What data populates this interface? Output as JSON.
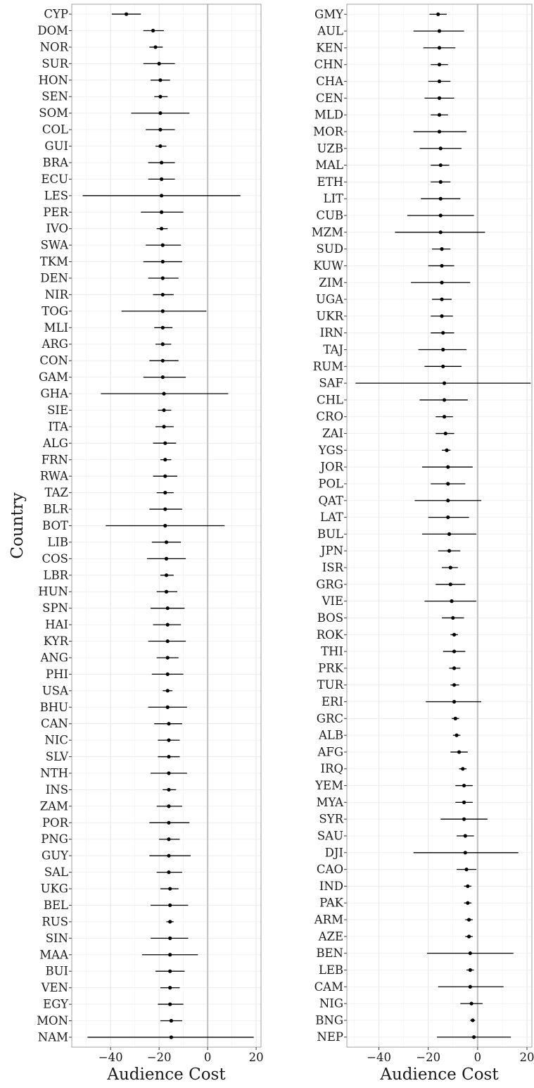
{
  "chart_data": [
    {
      "type": "scatter",
      "panel": "left",
      "xlabel": "Audience Cost",
      "ylabel": "Country",
      "xlim": [
        -56,
        22
      ],
      "xticks": [
        -40,
        -20,
        0,
        20
      ],
      "reference_line_x": 0,
      "grid": true,
      "points": [
        {
          "country": "CYP",
          "estimate": -33.5,
          "lower": -39.5,
          "upper": -27.5
        },
        {
          "country": "DOM",
          "estimate": -22.5,
          "lower": -26.5,
          "upper": -18
        },
        {
          "country": "NOR",
          "estimate": -21.5,
          "lower": -24,
          "upper": -18.5
        },
        {
          "country": "SUR",
          "estimate": -20,
          "lower": -26.5,
          "upper": -13.5
        },
        {
          "country": "HON",
          "estimate": -19.5,
          "lower": -23.5,
          "upper": -15.5
        },
        {
          "country": "SEN",
          "estimate": -19.5,
          "lower": -22,
          "upper": -16.5
        },
        {
          "country": "SOM",
          "estimate": -19.5,
          "lower": -31.5,
          "upper": -7.5
        },
        {
          "country": "COL",
          "estimate": -19.5,
          "lower": -25.5,
          "upper": -13.5
        },
        {
          "country": "GUI",
          "estimate": -19.5,
          "lower": -21.5,
          "upper": -17
        },
        {
          "country": "BRA",
          "estimate": -19,
          "lower": -24.5,
          "upper": -13.5
        },
        {
          "country": "ECU",
          "estimate": -19,
          "lower": -24.5,
          "upper": -13.5
        },
        {
          "country": "LES",
          "estimate": -19,
          "lower": -51.5,
          "upper": 13.5
        },
        {
          "country": "PER",
          "estimate": -19,
          "lower": -27.5,
          "upper": -10
        },
        {
          "country": "IVO",
          "estimate": -19,
          "lower": -21,
          "upper": -16.5
        },
        {
          "country": "SWA",
          "estimate": -18.5,
          "lower": -25.5,
          "upper": -11
        },
        {
          "country": "TKM",
          "estimate": -18.5,
          "lower": -26.5,
          "upper": -10.5
        },
        {
          "country": "DEN",
          "estimate": -18.5,
          "lower": -24.5,
          "upper": -12
        },
        {
          "country": "NIR",
          "estimate": -18.5,
          "lower": -22.5,
          "upper": -14
        },
        {
          "country": "TOG",
          "estimate": -18.5,
          "lower": -35.5,
          "upper": -0.5
        },
        {
          "country": "MLI",
          "estimate": -18.5,
          "lower": -22,
          "upper": -14.5
        },
        {
          "country": "ARG",
          "estimate": -18.5,
          "lower": -21.5,
          "upper": -15
        },
        {
          "country": "CON",
          "estimate": -18.5,
          "lower": -24,
          "upper": -12
        },
        {
          "country": "GAM",
          "estimate": -18.5,
          "lower": -26.5,
          "upper": -9
        },
        {
          "country": "GHA",
          "estimate": -18,
          "lower": -44,
          "upper": 8.5
        },
        {
          "country": "SIE",
          "estimate": -18,
          "lower": -20.5,
          "upper": -15
        },
        {
          "country": "ITA",
          "estimate": -18,
          "lower": -21.5,
          "upper": -14
        },
        {
          "country": "ALG",
          "estimate": -17.5,
          "lower": -22.5,
          "upper": -13
        },
        {
          "country": "FRN",
          "estimate": -17.5,
          "lower": -19.5,
          "upper": -15
        },
        {
          "country": "RWA",
          "estimate": -17.5,
          "lower": -22.5,
          "upper": -12.5
        },
        {
          "country": "TAZ",
          "estimate": -17.5,
          "lower": -21,
          "upper": -14
        },
        {
          "country": "BLR",
          "estimate": -17.5,
          "lower": -24,
          "upper": -10.5
        },
        {
          "country": "BOT",
          "estimate": -17.5,
          "lower": -42,
          "upper": 7
        },
        {
          "country": "LIB",
          "estimate": -17,
          "lower": -23,
          "upper": -11
        },
        {
          "country": "COS",
          "estimate": -17,
          "lower": -25,
          "upper": -9
        },
        {
          "country": "LBR",
          "estimate": -17,
          "lower": -19.5,
          "upper": -14
        },
        {
          "country": "HUN",
          "estimate": -17,
          "lower": -21,
          "upper": -12.5
        },
        {
          "country": "SPN",
          "estimate": -16.5,
          "lower": -23.5,
          "upper": -9.5
        },
        {
          "country": "HAI",
          "estimate": -16.5,
          "lower": -22.5,
          "upper": -11
        },
        {
          "country": "KYR",
          "estimate": -16.5,
          "lower": -24.5,
          "upper": -9
        },
        {
          "country": "ANG",
          "estimate": -16.5,
          "lower": -21,
          "upper": -12
        },
        {
          "country": "PHI",
          "estimate": -16.5,
          "lower": -23,
          "upper": -10
        },
        {
          "country": "USA",
          "estimate": -16.5,
          "lower": -18.5,
          "upper": -14.5
        },
        {
          "country": "BHU",
          "estimate": -16.5,
          "lower": -24.5,
          "upper": -8.5
        },
        {
          "country": "CAN",
          "estimate": -16,
          "lower": -22,
          "upper": -10.5
        },
        {
          "country": "NIC",
          "estimate": -16,
          "lower": -20.5,
          "upper": -11.5
        },
        {
          "country": "SLV",
          "estimate": -16,
          "lower": -20.5,
          "upper": -11.5
        },
        {
          "country": "NTH",
          "estimate": -16,
          "lower": -23.5,
          "upper": -8.5
        },
        {
          "country": "INS",
          "estimate": -16,
          "lower": -18.5,
          "upper": -13
        },
        {
          "country": "ZAM",
          "estimate": -16,
          "lower": -21,
          "upper": -10.5
        },
        {
          "country": "POR",
          "estimate": -16,
          "lower": -24,
          "upper": -7.5
        },
        {
          "country": "PNG",
          "estimate": -16,
          "lower": -20,
          "upper": -11.5
        },
        {
          "country": "GUY",
          "estimate": -16,
          "lower": -24,
          "upper": -7
        },
        {
          "country": "SAL",
          "estimate": -16,
          "lower": -21,
          "upper": -10.5
        },
        {
          "country": "UKG",
          "estimate": -15.5,
          "lower": -19.5,
          "upper": -12
        },
        {
          "country": "BEL",
          "estimate": -15.5,
          "lower": -23.5,
          "upper": -8
        },
        {
          "country": "RUS",
          "estimate": -15.5,
          "lower": -17,
          "upper": -14
        },
        {
          "country": "SIN",
          "estimate": -15.5,
          "lower": -23.5,
          "upper": -8
        },
        {
          "country": "MAA",
          "estimate": -15.5,
          "lower": -27,
          "upper": -4
        },
        {
          "country": "BUI",
          "estimate": -15.5,
          "lower": -21.5,
          "upper": -9.5
        },
        {
          "country": "VEN",
          "estimate": -15.5,
          "lower": -19.5,
          "upper": -11.5
        },
        {
          "country": "EGY",
          "estimate": -15.5,
          "lower": -20.5,
          "upper": -10
        },
        {
          "country": "MON",
          "estimate": -15,
          "lower": -19.5,
          "upper": -10.5
        },
        {
          "country": "NAM",
          "estimate": -15,
          "lower": -49.5,
          "upper": 19
        }
      ]
    },
    {
      "type": "scatter",
      "panel": "right",
      "xlabel": "Audience Cost",
      "ylabel": "",
      "xlim": [
        -53,
        22
      ],
      "xticks": [
        -40,
        -20,
        0,
        20
      ],
      "reference_line_x": 0,
      "grid": true,
      "points": [
        {
          "country": "GMY",
          "estimate": -16,
          "lower": -19.5,
          "upper": -12.5
        },
        {
          "country": "AUL",
          "estimate": -15.5,
          "lower": -26,
          "upper": -5.5
        },
        {
          "country": "KEN",
          "estimate": -15.5,
          "lower": -22,
          "upper": -9
        },
        {
          "country": "CHN",
          "estimate": -15.5,
          "lower": -19,
          "upper": -12
        },
        {
          "country": "CHA",
          "estimate": -15.5,
          "lower": -20,
          "upper": -11
        },
        {
          "country": "CEN",
          "estimate": -15.5,
          "lower": -21.5,
          "upper": -9.5
        },
        {
          "country": "MLD",
          "estimate": -15.5,
          "lower": -19,
          "upper": -12
        },
        {
          "country": "MOR",
          "estimate": -15.5,
          "lower": -26,
          "upper": -4.5
        },
        {
          "country": "UZB",
          "estimate": -15,
          "lower": -23.5,
          "upper": -6.5
        },
        {
          "country": "MAL",
          "estimate": -15,
          "lower": -19,
          "upper": -11.5
        },
        {
          "country": "ETH",
          "estimate": -15,
          "lower": -19,
          "upper": -11
        },
        {
          "country": "LIT",
          "estimate": -15,
          "lower": -23,
          "upper": -7
        },
        {
          "country": "CUB",
          "estimate": -15,
          "lower": -28.5,
          "upper": -1.5
        },
        {
          "country": "MZM",
          "estimate": -15,
          "lower": -33.5,
          "upper": 3
        },
        {
          "country": "SUD",
          "estimate": -14.5,
          "lower": -18.5,
          "upper": -11
        },
        {
          "country": "KUW",
          "estimate": -14.5,
          "lower": -20,
          "upper": -9.5
        },
        {
          "country": "ZIM",
          "estimate": -14.5,
          "lower": -27,
          "upper": -3
        },
        {
          "country": "UGA",
          "estimate": -14.5,
          "lower": -18.5,
          "upper": -10.5
        },
        {
          "country": "UKR",
          "estimate": -14.5,
          "lower": -19,
          "upper": -10
        },
        {
          "country": "IRN",
          "estimate": -14,
          "lower": -19,
          "upper": -9.5
        },
        {
          "country": "TAJ",
          "estimate": -14,
          "lower": -24,
          "upper": -4.5
        },
        {
          "country": "RUM",
          "estimate": -14,
          "lower": -21.5,
          "upper": -6.5
        },
        {
          "country": "SAF",
          "estimate": -13.5,
          "lower": -49.5,
          "upper": 21.5
        },
        {
          "country": "CHL",
          "estimate": -13.5,
          "lower": -23.5,
          "upper": -4
        },
        {
          "country": "CRO",
          "estimate": -13.5,
          "lower": -17,
          "upper": -10
        },
        {
          "country": "ZAI",
          "estimate": -13,
          "lower": -17,
          "upper": -9.5
        },
        {
          "country": "YGS",
          "estimate": -12.5,
          "lower": -14.5,
          "upper": -11
        },
        {
          "country": "JOR",
          "estimate": -12,
          "lower": -22.5,
          "upper": -2
        },
        {
          "country": "POL",
          "estimate": -12,
          "lower": -19,
          "upper": -5
        },
        {
          "country": "QAT",
          "estimate": -12,
          "lower": -25.5,
          "upper": 1.5
        },
        {
          "country": "LAT",
          "estimate": -12,
          "lower": -20,
          "upper": -3.5
        },
        {
          "country": "BUL",
          "estimate": -11.5,
          "lower": -22.5,
          "upper": -0.5
        },
        {
          "country": "JPN",
          "estimate": -11.5,
          "lower": -16,
          "upper": -7
        },
        {
          "country": "ISR",
          "estimate": -11,
          "lower": -14.5,
          "upper": -8
        },
        {
          "country": "GRG",
          "estimate": -11,
          "lower": -17,
          "upper": -5
        },
        {
          "country": "VIE",
          "estimate": -10.5,
          "lower": -21.5,
          "upper": -0.5
        },
        {
          "country": "BOS",
          "estimate": -10,
          "lower": -14.5,
          "upper": -5.5
        },
        {
          "country": "ROK",
          "estimate": -9.5,
          "lower": -11,
          "upper": -8
        },
        {
          "country": "THI",
          "estimate": -9.5,
          "lower": -14,
          "upper": -5
        },
        {
          "country": "PRK",
          "estimate": -9.5,
          "lower": -11.5,
          "upper": -7
        },
        {
          "country": "TUR",
          "estimate": -9.5,
          "lower": -11,
          "upper": -7.5
        },
        {
          "country": "ERI",
          "estimate": -9.5,
          "lower": -21,
          "upper": 1.5
        },
        {
          "country": "GRC",
          "estimate": -9,
          "lower": -10.5,
          "upper": -7.5
        },
        {
          "country": "ALB",
          "estimate": -8.5,
          "lower": -10,
          "upper": -7
        },
        {
          "country": "AFG",
          "estimate": -7.5,
          "lower": -11,
          "upper": -4
        },
        {
          "country": "IRQ",
          "estimate": -6,
          "lower": -7.5,
          "upper": -4.5
        },
        {
          "country": "YEM",
          "estimate": -5.5,
          "lower": -9,
          "upper": -2
        },
        {
          "country": "MYA",
          "estimate": -5.5,
          "lower": -9,
          "upper": -2
        },
        {
          "country": "SYR",
          "estimate": -5.5,
          "lower": -15,
          "upper": 4
        },
        {
          "country": "SAU",
          "estimate": -5,
          "lower": -8.5,
          "upper": -1.5
        },
        {
          "country": "DJI",
          "estimate": -5,
          "lower": -26,
          "upper": 16.5
        },
        {
          "country": "CAO",
          "estimate": -4.5,
          "lower": -8.5,
          "upper": -0.5
        },
        {
          "country": "IND",
          "estimate": -4,
          "lower": -5.5,
          "upper": -2.5
        },
        {
          "country": "PAK",
          "estimate": -4,
          "lower": -5.5,
          "upper": -2.5
        },
        {
          "country": "ARM",
          "estimate": -3.5,
          "lower": -5,
          "upper": -2
        },
        {
          "country": "AZE",
          "estimate": -3.5,
          "lower": -5,
          "upper": -2
        },
        {
          "country": "BEN",
          "estimate": -3,
          "lower": -20.5,
          "upper": 14.5
        },
        {
          "country": "LEB",
          "estimate": -3,
          "lower": -4.5,
          "upper": -1.5
        },
        {
          "country": "CAM",
          "estimate": -3,
          "lower": -16,
          "upper": 10.5
        },
        {
          "country": "NIG",
          "estimate": -2.5,
          "lower": -7,
          "upper": 2
        },
        {
          "country": "BNG",
          "estimate": -2,
          "lower": -3,
          "upper": -1
        },
        {
          "country": "NEP",
          "estimate": -1.5,
          "lower": -16.5,
          "upper": 13.5
        }
      ]
    }
  ]
}
